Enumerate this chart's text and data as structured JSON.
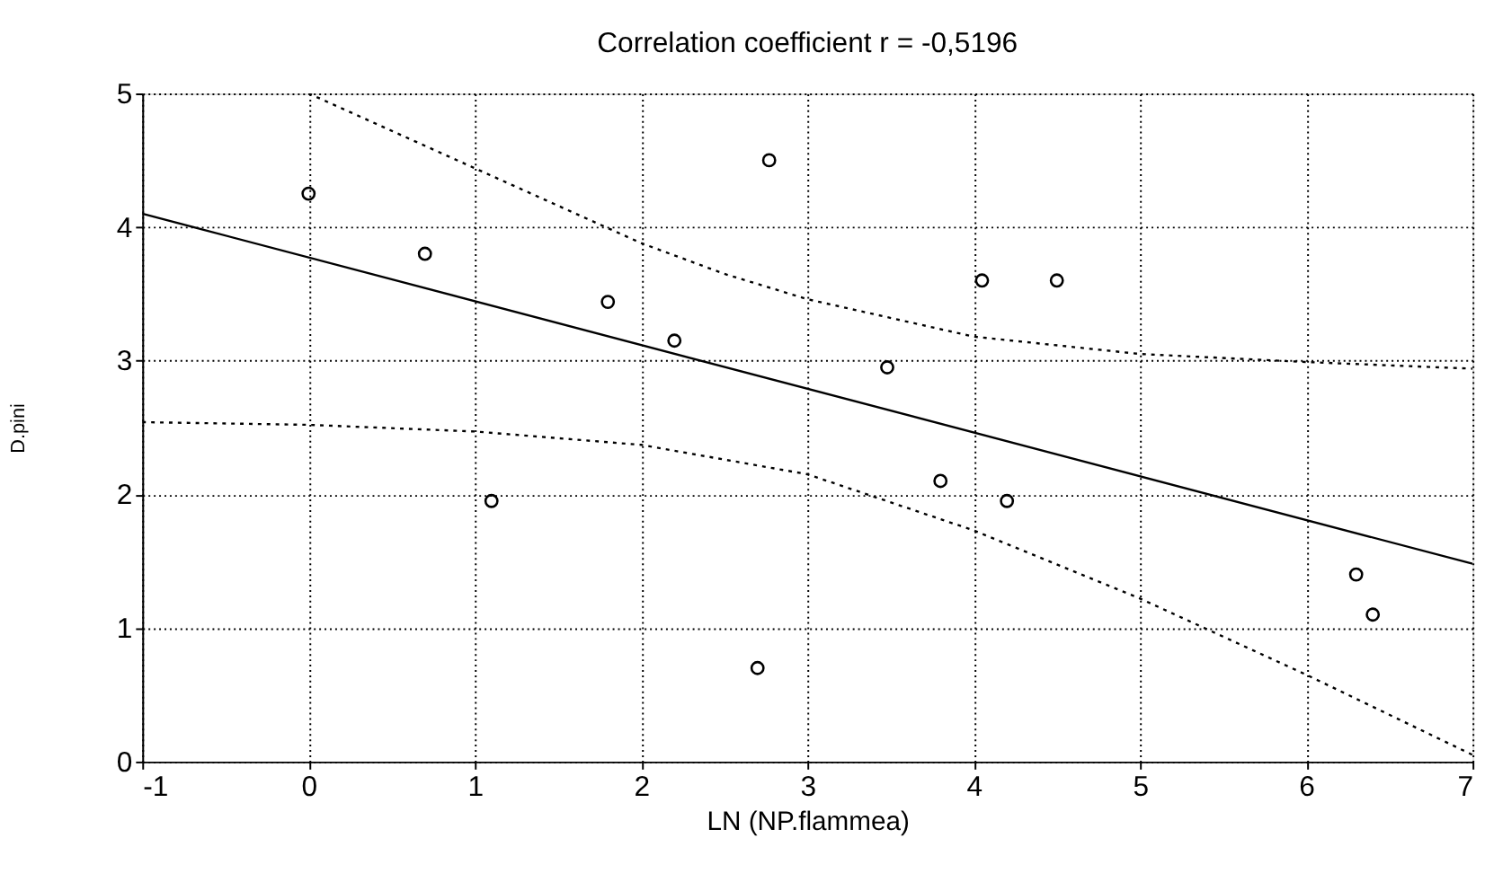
{
  "chart_data": {
    "type": "scatter",
    "title": "Correlation coefficient r = -0,5196",
    "xlabel": "LN (NP.flammea)",
    "ylabel": "D.pini",
    "xlim": [
      -1,
      7
    ],
    "ylim": [
      0,
      5
    ],
    "xticks": [
      -1,
      0,
      1,
      2,
      3,
      4,
      5,
      6,
      7
    ],
    "yticks": [
      0,
      1,
      2,
      3,
      4,
      5
    ],
    "grid": true,
    "series": [
      {
        "color": "#000000",
        "marker": "circle",
        "x": [
          0,
          0.7,
          1.1,
          1.8,
          2.2,
          2.77,
          2.7,
          3.48,
          3.8,
          4.05,
          4.2,
          4.5,
          6.3,
          6.4
        ],
        "values": [
          4.25,
          3.8,
          1.95,
          3.44,
          3.15,
          4.5,
          0.7,
          2.95,
          2.1,
          3.6,
          1.95,
          3.6,
          1.4,
          1.1
        ]
      },
      {
        "type": "line",
        "color": "#000000",
        "line_style": "solid",
        "marker": "none",
        "x": [
          -1,
          7
        ],
        "values": [
          4.1,
          1.48
        ]
      },
      {
        "type": "line",
        "color": "#000000",
        "line_style": "dotted",
        "marker": "none",
        "x": [
          0,
          1,
          2,
          2.5,
          3,
          4,
          5,
          6,
          7
        ],
        "values": [
          5.0,
          4.44,
          3.88,
          3.65,
          3.46,
          3.18,
          3.05,
          2.99,
          2.94
        ]
      },
      {
        "type": "line",
        "color": "#000000",
        "line_style": "dotted",
        "marker": "none",
        "x": [
          -1,
          0,
          1,
          2,
          3,
          4,
          5,
          6,
          7
        ],
        "values": [
          2.54,
          2.52,
          2.47,
          2.37,
          2.15,
          1.73,
          1.22,
          0.65,
          0.05
        ]
      }
    ]
  }
}
